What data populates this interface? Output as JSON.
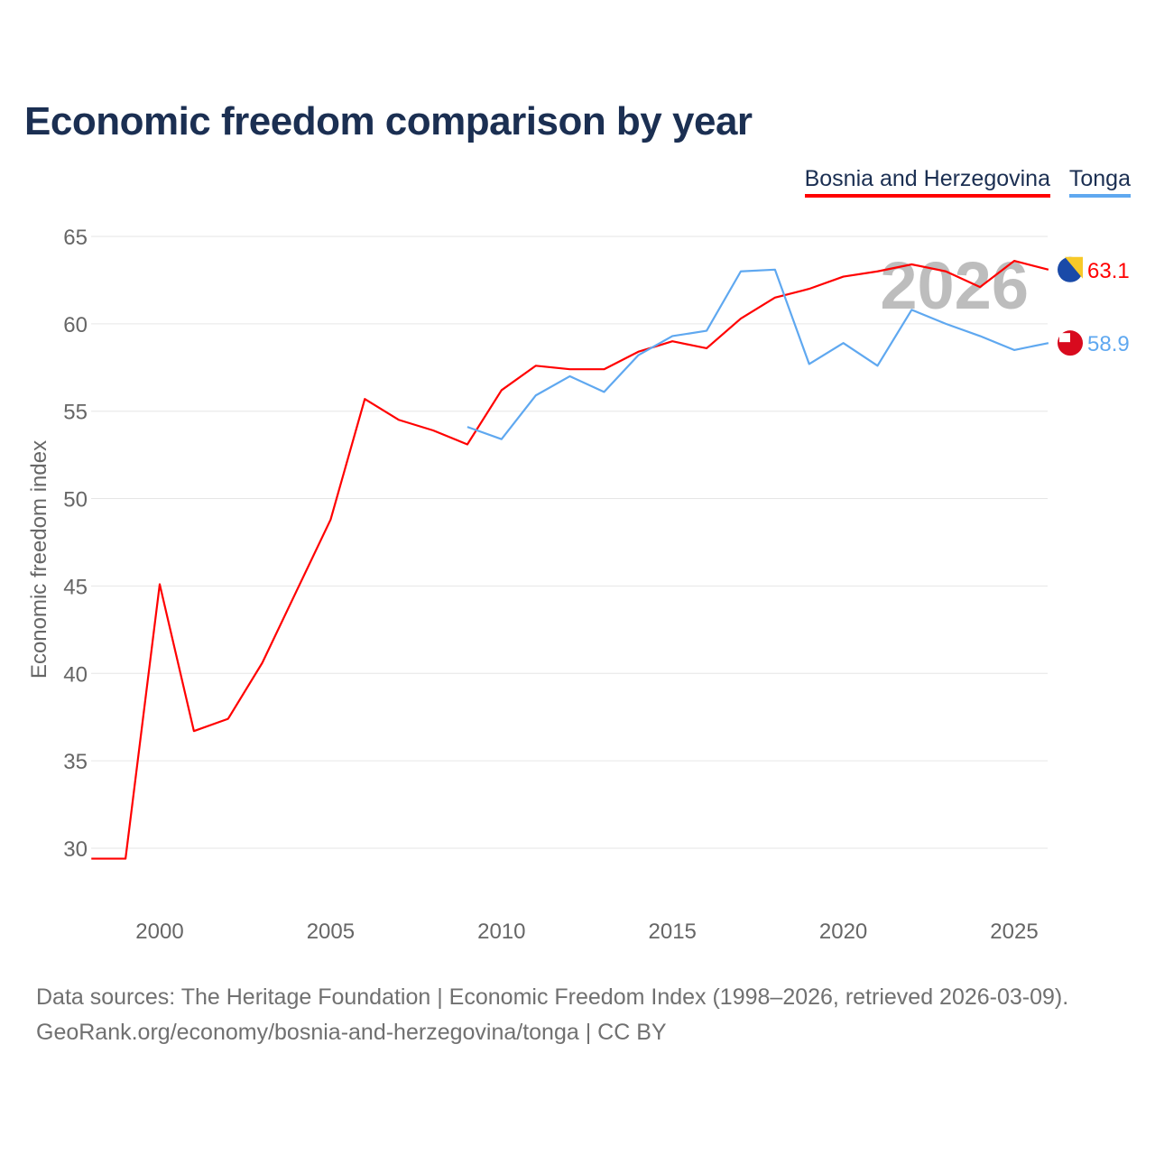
{
  "title": "Economic freedom comparison by year",
  "footer": {
    "line1": "Data sources: The Heritage Foundation | Economic Freedom Index (1998–2026, retrieved 2026-03-09).",
    "line2": "GeoRank.org/economy/bosnia-and-herzegovina/tonga | CC BY"
  },
  "chart_data": {
    "type": "line",
    "title": "Economic freedom comparison by year",
    "xlabel": "",
    "ylabel": "Economic freedom index",
    "xlim": [
      1998,
      2026
    ],
    "ylim": [
      27,
      65
    ],
    "xticks": [
      2000,
      2005,
      2010,
      2015,
      2020,
      2025
    ],
    "yticks": [
      30,
      35,
      40,
      45,
      50,
      55,
      60,
      65
    ],
    "watermark_year": "2026",
    "legend": "top-right",
    "series": [
      {
        "name": "Bosnia and Herzegovina",
        "color": "#ff0000",
        "end_label": "63.1",
        "flag": "bosnia-flag-icon",
        "x": [
          1998,
          1999,
          2000,
          2001,
          2002,
          2003,
          2004,
          2005,
          2006,
          2007,
          2008,
          2009,
          2010,
          2011,
          2012,
          2013,
          2014,
          2015,
          2016,
          2017,
          2018,
          2019,
          2020,
          2021,
          2022,
          2023,
          2024,
          2025,
          2026
        ],
        "values": [
          29.4,
          29.4,
          45.1,
          36.7,
          37.4,
          40.6,
          44.7,
          48.8,
          55.7,
          54.5,
          53.9,
          53.1,
          56.2,
          57.6,
          57.4,
          57.4,
          58.4,
          59.0,
          58.6,
          60.3,
          61.5,
          62.0,
          62.7,
          63.0,
          63.4,
          63.0,
          62.1,
          63.6,
          63.1
        ]
      },
      {
        "name": "Tonga",
        "color": "#5fa8f0",
        "end_label": "58.9",
        "flag": "tonga-flag-icon",
        "x": [
          2009,
          2010,
          2011,
          2012,
          2013,
          2014,
          2015,
          2016,
          2017,
          2018,
          2019,
          2020,
          2021,
          2022,
          2023,
          2024,
          2025,
          2026
        ],
        "values": [
          54.1,
          53.4,
          55.9,
          57.0,
          56.1,
          58.2,
          59.3,
          59.6,
          63.0,
          63.1,
          57.7,
          58.9,
          57.6,
          60.8,
          60.0,
          59.3,
          58.5,
          58.9
        ]
      }
    ]
  }
}
